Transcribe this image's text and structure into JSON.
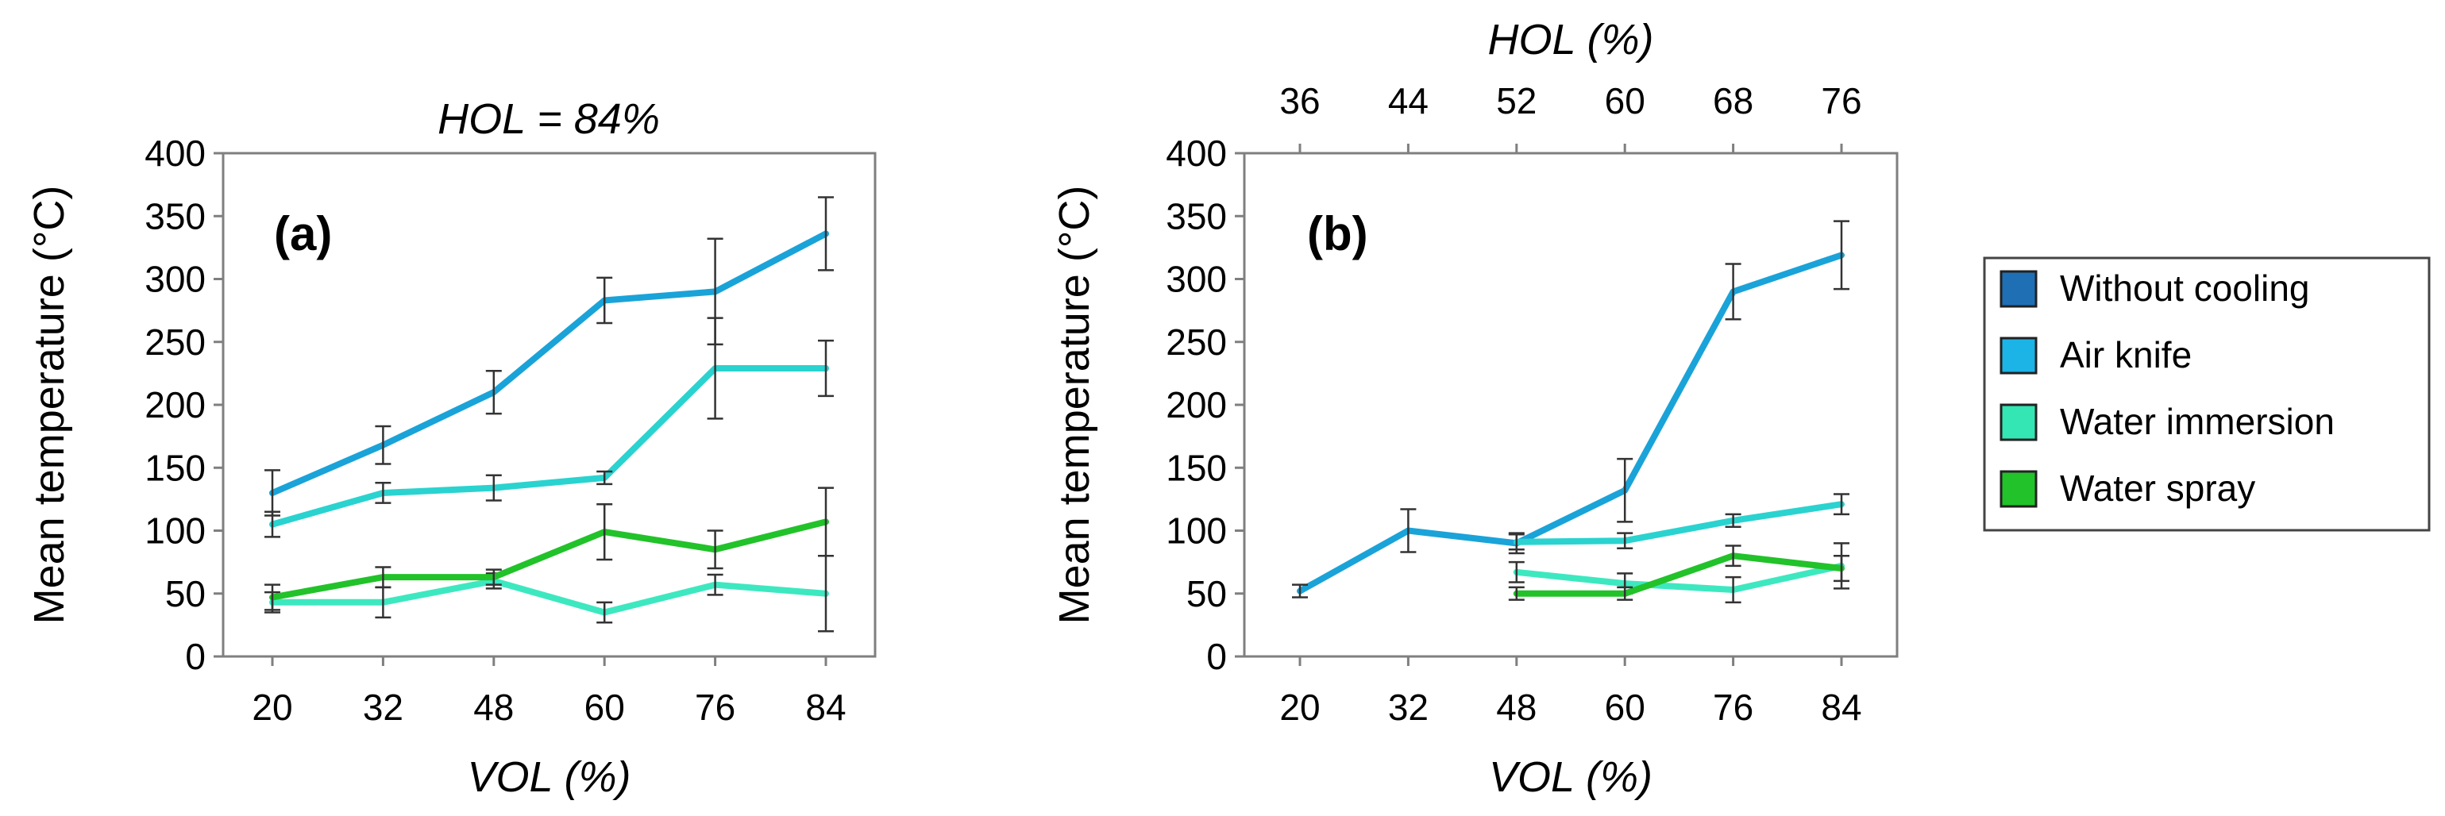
{
  "legend": {
    "entries": [
      {
        "name": "Without cooling",
        "color": "#1f6fb5"
      },
      {
        "name": "Air knife",
        "color": "#1cb4e6"
      },
      {
        "name": "Water immersion",
        "color": "#33e6b4"
      },
      {
        "name": "Water spray",
        "color": "#22c22a"
      }
    ]
  },
  "chart_data": [
    {
      "type": "line",
      "panel_label": "(a)",
      "title": "HOL = 84%",
      "xlabel": "VOL (%)",
      "ylabel": "Mean temperature (°C)",
      "categories": [
        "20",
        "32",
        "48",
        "60",
        "76",
        "84"
      ],
      "ylim": [
        0,
        400
      ],
      "yticks": [
        "0",
        "50",
        "100",
        "150",
        "200",
        "250",
        "300",
        "350",
        "400"
      ],
      "series": [
        {
          "name": "Without cooling",
          "color": "#1aa3d8",
          "values": [
            130,
            168,
            210,
            283,
            290,
            336
          ],
          "errors": [
            18,
            15,
            17,
            18,
            42,
            29
          ]
        },
        {
          "name": "Air knife",
          "color": "#2ad3cf",
          "values": [
            105,
            130,
            134,
            142,
            229,
            229
          ],
          "errors": [
            10,
            8,
            10,
            5,
            40,
            22
          ]
        },
        {
          "name": "Water immersion",
          "color": "#3de8c0",
          "values": [
            43,
            43,
            60,
            35,
            57,
            50
          ],
          "errors": [
            8,
            12,
            6,
            8,
            8,
            30
          ]
        },
        {
          "name": "Water spray",
          "color": "#22c22a",
          "values": [
            47,
            63,
            63,
            99,
            85,
            107
          ],
          "errors": [
            10,
            8,
            6,
            22,
            15,
            27
          ]
        }
      ]
    },
    {
      "type": "line",
      "panel_label": "(b)",
      "title": "HOL (%)",
      "xlabel": "VOL (%)",
      "ylabel": "Mean temperature (°C)",
      "categories": [
        "20",
        "32",
        "48",
        "60",
        "76",
        "84"
      ],
      "top_categories": [
        "36",
        "44",
        "52",
        "60",
        "68",
        "76"
      ],
      "ylim": [
        0,
        400
      ],
      "yticks": [
        "0",
        "50",
        "100",
        "150",
        "200",
        "250",
        "300",
        "350",
        "400"
      ],
      "series": [
        {
          "name": "Without cooling",
          "color": "#1aa3d8",
          "values": [
            52,
            100,
            90,
            132,
            290,
            319
          ],
          "errors": [
            5,
            17,
            8,
            25,
            22,
            27
          ]
        },
        {
          "name": "Air knife",
          "color": "#2ad3cf",
          "values": [
            null,
            null,
            91,
            92,
            108,
            121
          ],
          "errors": [
            null,
            null,
            6,
            6,
            5,
            8
          ]
        },
        {
          "name": "Water immersion",
          "color": "#3de8c0",
          "values": [
            null,
            null,
            67,
            58,
            53,
            72
          ],
          "errors": [
            null,
            null,
            8,
            8,
            10,
            18
          ]
        },
        {
          "name": "Water spray",
          "color": "#22c22a",
          "values": [
            null,
            null,
            50,
            50,
            80,
            70
          ],
          "errors": [
            null,
            null,
            5,
            5,
            8,
            10
          ]
        }
      ]
    }
  ]
}
